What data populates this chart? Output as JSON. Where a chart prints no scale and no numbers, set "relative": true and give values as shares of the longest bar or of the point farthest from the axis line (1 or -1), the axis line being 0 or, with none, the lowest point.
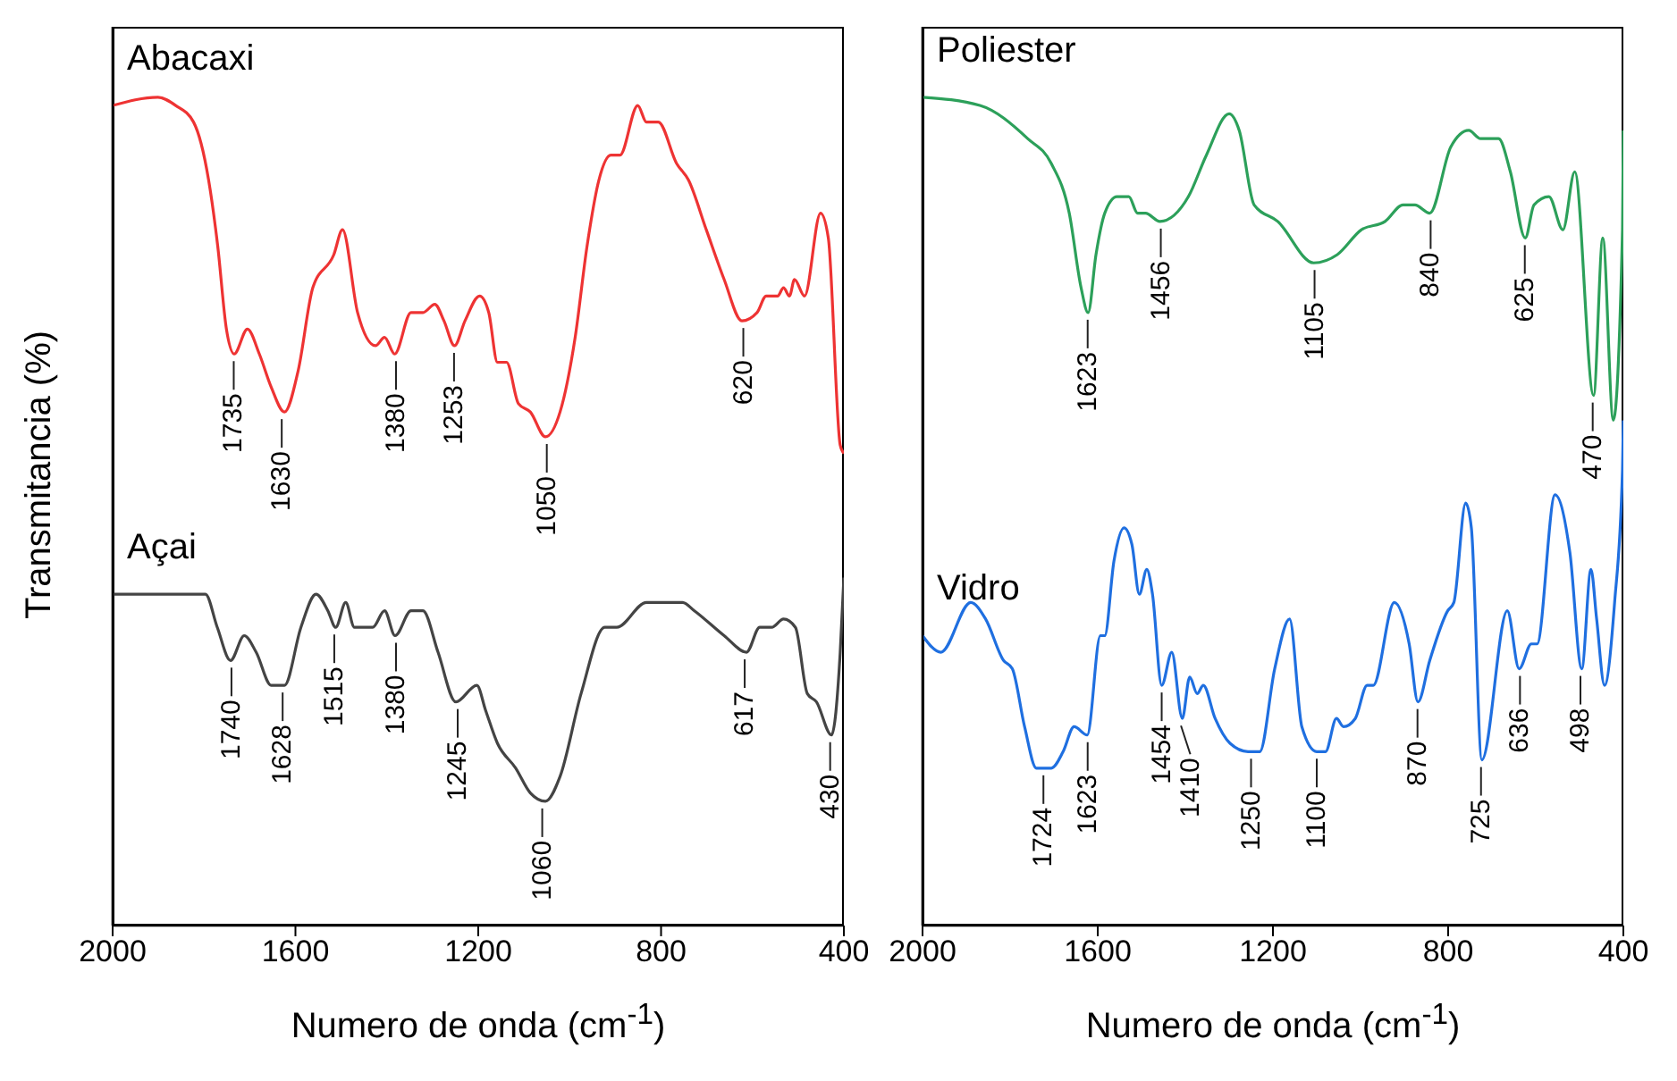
{
  "chart_data": [
    {
      "type": "line",
      "relative": true,
      "ylabel": "Transmitancia (%)",
      "xlabel": "Numero de onda (cm$^{-1}$)",
      "xlim": [
        2000,
        400
      ],
      "xticks": [
        2000,
        1600,
        1200,
        800,
        400
      ],
      "series": [
        {
          "name": "Abacaxi",
          "color": "#ee3333",
          "x": [
            2000,
            1901,
            1862,
            1823,
            1790,
            1770,
            1751,
            1734,
            1705,
            1679,
            1653,
            1624,
            1594,
            1562,
            1516,
            1497,
            1464,
            1425,
            1405,
            1383,
            1347,
            1321,
            1295,
            1275,
            1252,
            1229,
            1197,
            1177,
            1158,
            1138,
            1112,
            1086,
            1053,
            1021,
            988,
            962,
            936,
            910,
            890,
            851,
            832,
            806,
            766,
            740,
            701,
            662,
            623,
            590,
            570,
            545,
            532,
            519,
            508,
            486,
            451,
            434,
            408,
            400
          ],
          "values": [
            0.99,
            1.0,
            0.99,
            0.97,
            0.9,
            0.82,
            0.72,
            0.69,
            0.72,
            0.69,
            0.65,
            0.62,
            0.67,
            0.77,
            0.81,
            0.84,
            0.74,
            0.7,
            0.71,
            0.69,
            0.74,
            0.74,
            0.75,
            0.73,
            0.7,
            0.73,
            0.76,
            0.74,
            0.68,
            0.68,
            0.63,
            0.62,
            0.59,
            0.62,
            0.71,
            0.82,
            0.9,
            0.93,
            0.93,
            0.99,
            0.97,
            0.97,
            0.92,
            0.9,
            0.84,
            0.78,
            0.73,
            0.74,
            0.76,
            0.76,
            0.77,
            0.76,
            0.78,
            0.76,
            0.86,
            0.83,
            0.58,
            0.57
          ]
        },
        {
          "name": "Açai",
          "color": "#444444",
          "x": [
            2000,
            1797,
            1771,
            1742,
            1712,
            1686,
            1653,
            1624,
            1588,
            1555,
            1529,
            1512,
            1490,
            1471,
            1451,
            1431,
            1405,
            1382,
            1347,
            1321,
            1288,
            1249,
            1203,
            1184,
            1158,
            1118,
            1086,
            1053,
            1021,
            975,
            923,
            897,
            832,
            753,
            727,
            662,
            613,
            584,
            558,
            532,
            506,
            480,
            460,
            427,
            408,
            400
          ],
          "values": [
            0.4,
            0.4,
            0.36,
            0.32,
            0.35,
            0.33,
            0.29,
            0.29,
            0.36,
            0.4,
            0.38,
            0.36,
            0.39,
            0.36,
            0.36,
            0.36,
            0.38,
            0.35,
            0.38,
            0.38,
            0.33,
            0.27,
            0.29,
            0.26,
            0.22,
            0.19,
            0.16,
            0.15,
            0.18,
            0.28,
            0.36,
            0.36,
            0.39,
            0.39,
            0.38,
            0.35,
            0.33,
            0.36,
            0.36,
            0.37,
            0.36,
            0.28,
            0.27,
            0.23,
            0.33,
            0.42
          ]
        }
      ],
      "annotations": [
        {
          "text": "1735",
          "x": 1735,
          "y": 0.69
        },
        {
          "text": "1630",
          "x": 1630,
          "y": 0.62
        },
        {
          "text": "1380",
          "x": 1380,
          "y": 0.69
        },
        {
          "text": "1253",
          "x": 1253,
          "y": 0.7
        },
        {
          "text": "1050",
          "x": 1050,
          "y": 0.59
        },
        {
          "text": "620",
          "x": 620,
          "y": 0.73
        },
        {
          "text": "1740",
          "x": 1740,
          "y": 0.32
        },
        {
          "text": "1628",
          "x": 1628,
          "y": 0.29
        },
        {
          "text": "1515",
          "x": 1515,
          "y": 0.36
        },
        {
          "text": "1380",
          "x": 1380,
          "y": 0.35
        },
        {
          "text": "1245",
          "x": 1245,
          "y": 0.27
        },
        {
          "text": "1060",
          "x": 1060,
          "y": 0.15
        },
        {
          "text": "617",
          "x": 617,
          "y": 0.33
        },
        {
          "text": "430",
          "x": 430,
          "y": 0.23
        }
      ]
    },
    {
      "type": "line",
      "relative": true,
      "xlabel": "Numero de onda (cm$^{-1}$)",
      "xlim": [
        2000,
        400
      ],
      "xticks": [
        2000,
        1600,
        1200,
        800,
        400
      ],
      "series": [
        {
          "name": "Poliester",
          "color": "#2ca05a",
          "x": [
            2000,
            1869,
            1760,
            1706,
            1665,
            1638,
            1622,
            1604,
            1584,
            1556,
            1529,
            1509,
            1491,
            1458,
            1393,
            1352,
            1300,
            1277,
            1243,
            1189,
            1107,
            1053,
            998,
            944,
            903,
            876,
            842,
            794,
            753,
            726,
            685,
            658,
            624,
            604,
            570,
            538,
            511,
            468,
            447,
            423,
            402,
            400
          ],
          "values": [
            1.0,
            0.99,
            0.95,
            0.92,
            0.86,
            0.77,
            0.74,
            0.81,
            0.86,
            0.88,
            0.88,
            0.86,
            0.86,
            0.85,
            0.88,
            0.93,
            0.98,
            0.96,
            0.87,
            0.85,
            0.8,
            0.81,
            0.84,
            0.85,
            0.87,
            0.87,
            0.86,
            0.94,
            0.96,
            0.95,
            0.95,
            0.91,
            0.83,
            0.87,
            0.88,
            0.84,
            0.91,
            0.64,
            0.83,
            0.61,
            0.84,
            0.96
          ]
        },
        {
          "name": "Vidro",
          "color": "#1f6fe0",
          "x": [
            2000,
            1958,
            1890,
            1856,
            1815,
            1795,
            1767,
            1740,
            1706,
            1679,
            1654,
            1624,
            1594,
            1584,
            1563,
            1540,
            1522,
            1505,
            1488,
            1475,
            1454,
            1431,
            1407,
            1390,
            1373,
            1359,
            1332,
            1298,
            1257,
            1230,
            1196,
            1162,
            1134,
            1100,
            1080,
            1055,
            1039,
            1012,
            985,
            971,
            923,
            889,
            869,
            842,
            801,
            787,
            760,
            747,
            723,
            665,
            638,
            610,
            597,
            556,
            522,
            495,
            474,
            461,
            443,
            420,
            402,
            400
          ],
          "values": [
            0.35,
            0.33,
            0.39,
            0.37,
            0.32,
            0.31,
            0.24,
            0.19,
            0.19,
            0.21,
            0.24,
            0.23,
            0.35,
            0.35,
            0.44,
            0.48,
            0.46,
            0.4,
            0.43,
            0.4,
            0.29,
            0.33,
            0.25,
            0.3,
            0.28,
            0.29,
            0.25,
            0.22,
            0.21,
            0.21,
            0.31,
            0.37,
            0.24,
            0.21,
            0.21,
            0.25,
            0.24,
            0.25,
            0.29,
            0.29,
            0.39,
            0.34,
            0.27,
            0.32,
            0.38,
            0.39,
            0.51,
            0.48,
            0.2,
            0.38,
            0.31,
            0.34,
            0.34,
            0.52,
            0.45,
            0.31,
            0.43,
            0.37,
            0.29,
            0.39,
            0.55,
            0.61
          ]
        }
      ],
      "annotations": [
        {
          "text": "1623",
          "x": 1623,
          "y": 0.74
        },
        {
          "text": "1456",
          "x": 1456,
          "y": 0.85
        },
        {
          "text": "1105",
          "x": 1105,
          "y": 0.8
        },
        {
          "text": "840",
          "x": 840,
          "y": 0.86
        },
        {
          "text": "625",
          "x": 625,
          "y": 0.83
        },
        {
          "text": "470",
          "x": 470,
          "y": 0.64
        },
        {
          "text": "1724",
          "x": 1724,
          "y": 0.19
        },
        {
          "text": "1623",
          "x": 1623,
          "y": 0.23
        },
        {
          "text": "1454",
          "x": 1454,
          "y": 0.29
        },
        {
          "text": "1410",
          "x": 1410,
          "y": 0.25
        },
        {
          "text": "1250",
          "x": 1250,
          "y": 0.21
        },
        {
          "text": "1100",
          "x": 1100,
          "y": 0.21
        },
        {
          "text": "870",
          "x": 870,
          "y": 0.27
        },
        {
          "text": "725",
          "x": 725,
          "y": 0.2
        },
        {
          "text": "636",
          "x": 636,
          "y": 0.31
        },
        {
          "text": "498",
          "x": 498,
          "y": 0.31
        }
      ]
    }
  ]
}
